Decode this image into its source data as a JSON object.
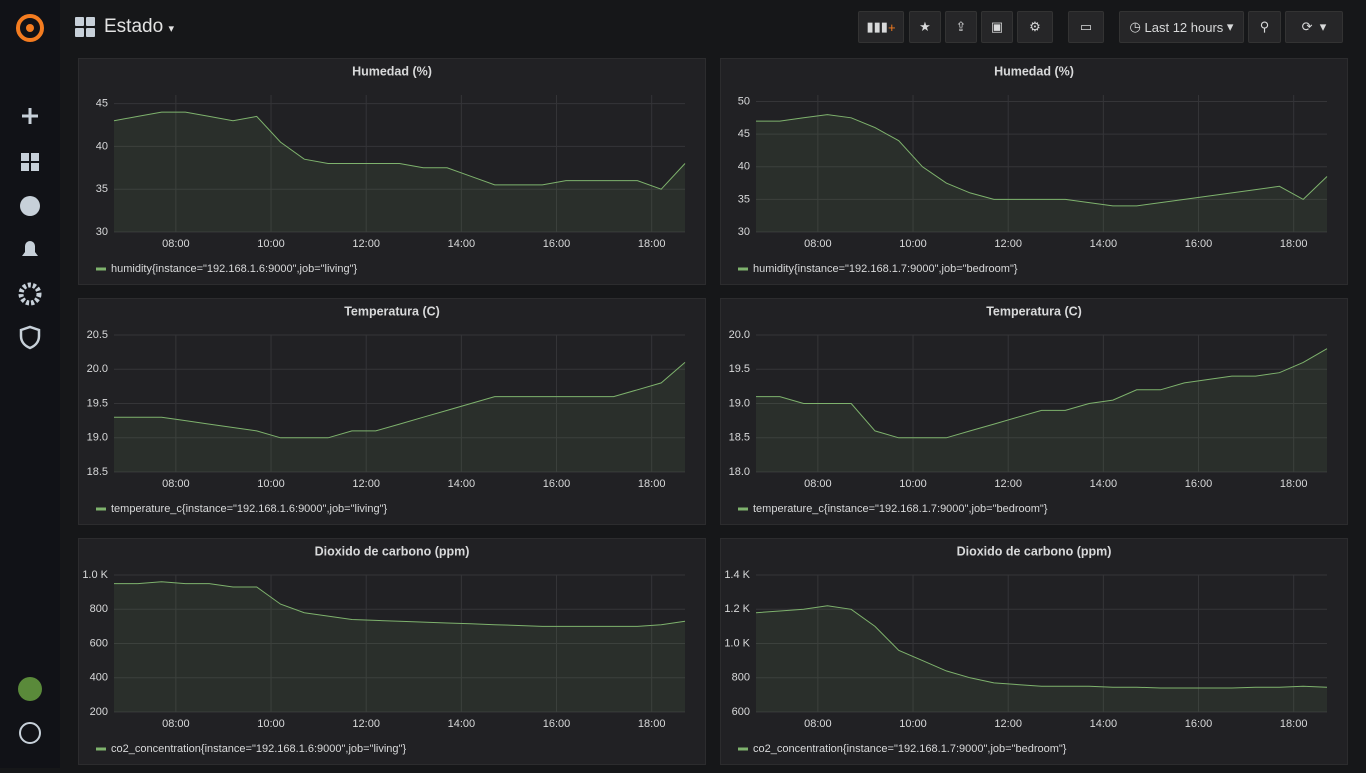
{
  "header": {
    "title": "Estado",
    "time_range": "Last 12 hours"
  },
  "chart_data": [
    {
      "type": "line",
      "title": "Humedad (%)",
      "x": [
        6.7,
        7.2,
        7.7,
        8.2,
        8.7,
        9.2,
        9.7,
        10.2,
        10.7,
        11.2,
        11.7,
        12.2,
        12.7,
        13.2,
        13.7,
        14.2,
        14.7,
        15.2,
        15.7,
        16.2,
        16.7,
        17.2,
        17.7,
        18.2,
        18.7
      ],
      "series": [
        {
          "name": "humidity{instance=\"192.168.1.6:9000\",job=\"living\"}",
          "color": "#7eb26d",
          "values": [
            43,
            43.5,
            44,
            44,
            43.5,
            43,
            43.5,
            40.5,
            38.5,
            38,
            38,
            38,
            38,
            37.5,
            37.5,
            36.5,
            35.5,
            35.5,
            35.5,
            36,
            36,
            36,
            36,
            35,
            38
          ]
        }
      ],
      "xlim": [
        6.7,
        18.7
      ],
      "xticks": [
        {
          "value": 8,
          "label": "08:00"
        },
        {
          "value": 10,
          "label": "10:00"
        },
        {
          "value": 12,
          "label": "12:00"
        },
        {
          "value": 14,
          "label": "14:00"
        },
        {
          "value": 16,
          "label": "16:00"
        },
        {
          "value": 18,
          "label": "18:00"
        }
      ],
      "ylim": [
        30,
        46
      ],
      "yticks": [
        30,
        35,
        40,
        45
      ],
      "grid": true
    },
    {
      "type": "line",
      "title": "Humedad (%)",
      "x": [
        6.7,
        7.2,
        7.7,
        8.2,
        8.7,
        9.2,
        9.7,
        10.2,
        10.7,
        11.2,
        11.7,
        12.2,
        12.7,
        13.2,
        13.7,
        14.2,
        14.7,
        15.2,
        15.7,
        16.2,
        16.7,
        17.2,
        17.7,
        18.2,
        18.7
      ],
      "series": [
        {
          "name": "humidity{instance=\"192.168.1.7:9000\",job=\"bedroom\"}",
          "color": "#7eb26d",
          "values": [
            47,
            47,
            47.5,
            48,
            47.5,
            46,
            44,
            40,
            37.5,
            36,
            35,
            35,
            35,
            35,
            34.5,
            34,
            34,
            34.5,
            35,
            35.5,
            36,
            36.5,
            37,
            35,
            38.5
          ]
        }
      ],
      "xlim": [
        6.7,
        18.7
      ],
      "xticks": [
        {
          "value": 8,
          "label": "08:00"
        },
        {
          "value": 10,
          "label": "10:00"
        },
        {
          "value": 12,
          "label": "12:00"
        },
        {
          "value": 14,
          "label": "14:00"
        },
        {
          "value": 16,
          "label": "16:00"
        },
        {
          "value": 18,
          "label": "18:00"
        }
      ],
      "ylim": [
        30,
        51
      ],
      "yticks": [
        30,
        35,
        40,
        45,
        50
      ],
      "grid": true
    },
    {
      "type": "line",
      "title": "Temperatura (C)",
      "x": [
        6.7,
        7.2,
        7.7,
        8.2,
        8.7,
        9.2,
        9.7,
        10.2,
        10.7,
        11.2,
        11.7,
        12.2,
        12.7,
        13.2,
        13.7,
        14.2,
        14.7,
        15.2,
        15.7,
        16.2,
        16.7,
        17.2,
        17.7,
        18.2,
        18.7
      ],
      "series": [
        {
          "name": "temperature_c{instance=\"192.168.1.6:9000\",job=\"living\"}",
          "color": "#7eb26d",
          "values": [
            19.3,
            19.3,
            19.3,
            19.25,
            19.2,
            19.15,
            19.1,
            19.0,
            19.0,
            19.0,
            19.1,
            19.1,
            19.2,
            19.3,
            19.4,
            19.5,
            19.6,
            19.6,
            19.6,
            19.6,
            19.6,
            19.6,
            19.7,
            19.8,
            20.1
          ]
        }
      ],
      "xlim": [
        6.7,
        18.7
      ],
      "xticks": [
        {
          "value": 8,
          "label": "08:00"
        },
        {
          "value": 10,
          "label": "10:00"
        },
        {
          "value": 12,
          "label": "12:00"
        },
        {
          "value": 14,
          "label": "14:00"
        },
        {
          "value": 16,
          "label": "16:00"
        },
        {
          "value": 18,
          "label": "18:00"
        }
      ],
      "ylim": [
        18.5,
        20.5
      ],
      "yticks": [
        {
          "value": 18.5,
          "label": "18.5"
        },
        {
          "value": 19,
          "label": "19.0"
        },
        {
          "value": 19.5,
          "label": "19.5"
        },
        {
          "value": 20,
          "label": "20.0"
        },
        {
          "value": 20.5,
          "label": "20.5"
        }
      ],
      "grid": true
    },
    {
      "type": "line",
      "title": "Temperatura (C)",
      "x": [
        6.7,
        7.2,
        7.7,
        8.2,
        8.7,
        9.2,
        9.7,
        10.2,
        10.7,
        11.2,
        11.7,
        12.2,
        12.7,
        13.2,
        13.7,
        14.2,
        14.7,
        15.2,
        15.7,
        16.2,
        16.7,
        17.2,
        17.7,
        18.2,
        18.7
      ],
      "series": [
        {
          "name": "temperature_c{instance=\"192.168.1.7:9000\",job=\"bedroom\"}",
          "color": "#7eb26d",
          "values": [
            19.1,
            19.1,
            19.0,
            19.0,
            19.0,
            18.6,
            18.5,
            18.5,
            18.5,
            18.6,
            18.7,
            18.8,
            18.9,
            18.9,
            19.0,
            19.05,
            19.2,
            19.2,
            19.3,
            19.35,
            19.4,
            19.4,
            19.45,
            19.6,
            19.8
          ]
        }
      ],
      "xlim": [
        6.7,
        18.7
      ],
      "xticks": [
        {
          "value": 8,
          "label": "08:00"
        },
        {
          "value": 10,
          "label": "10:00"
        },
        {
          "value": 12,
          "label": "12:00"
        },
        {
          "value": 14,
          "label": "14:00"
        },
        {
          "value": 16,
          "label": "16:00"
        },
        {
          "value": 18,
          "label": "18:00"
        }
      ],
      "ylim": [
        18,
        20
      ],
      "yticks": [
        {
          "value": 18,
          "label": "18.0"
        },
        {
          "value": 18.5,
          "label": "18.5"
        },
        {
          "value": 19,
          "label": "19.0"
        },
        {
          "value": 19.5,
          "label": "19.5"
        },
        {
          "value": 20,
          "label": "20.0"
        }
      ],
      "grid": true
    },
    {
      "type": "line",
      "title": "Dioxido de carbono (ppm)",
      "x": [
        6.7,
        7.2,
        7.7,
        8.2,
        8.7,
        9.2,
        9.7,
        10.2,
        10.7,
        11.2,
        11.7,
        12.2,
        12.7,
        13.2,
        13.7,
        14.2,
        14.7,
        15.2,
        15.7,
        16.2,
        16.7,
        17.2,
        17.7,
        18.2,
        18.7
      ],
      "series": [
        {
          "name": "co2_concentration{instance=\"192.168.1.6:9000\",job=\"living\"}",
          "color": "#7eb26d",
          "values": [
            950,
            950,
            960,
            950,
            950,
            930,
            930,
            830,
            780,
            760,
            740,
            735,
            730,
            725,
            720,
            715,
            710,
            705,
            700,
            700,
            700,
            700,
            700,
            710,
            730
          ]
        }
      ],
      "xlim": [
        6.7,
        18.7
      ],
      "xticks": [
        {
          "value": 8,
          "label": "08:00"
        },
        {
          "value": 10,
          "label": "10:00"
        },
        {
          "value": 12,
          "label": "12:00"
        },
        {
          "value": 14,
          "label": "14:00"
        },
        {
          "value": 16,
          "label": "16:00"
        },
        {
          "value": 18,
          "label": "18:00"
        }
      ],
      "ylim": [
        200,
        1000
      ],
      "yticks": [
        200,
        400,
        600,
        800,
        {
          "value": 1000,
          "label": "1.0 K"
        }
      ],
      "grid": true
    },
    {
      "type": "line",
      "title": "Dioxido de carbono (ppm)",
      "x": [
        6.7,
        7.2,
        7.7,
        8.2,
        8.7,
        9.2,
        9.7,
        10.2,
        10.7,
        11.2,
        11.7,
        12.2,
        12.7,
        13.2,
        13.7,
        14.2,
        14.7,
        15.2,
        15.7,
        16.2,
        16.7,
        17.2,
        17.7,
        18.2,
        18.7
      ],
      "series": [
        {
          "name": "co2_concentration{instance=\"192.168.1.7:9000\",job=\"bedroom\"}",
          "color": "#7eb26d",
          "values": [
            1180,
            1190,
            1200,
            1220,
            1200,
            1100,
            960,
            900,
            840,
            800,
            770,
            760,
            750,
            750,
            750,
            745,
            745,
            740,
            740,
            740,
            740,
            745,
            745,
            750,
            745
          ]
        }
      ],
      "xlim": [
        6.7,
        18.7
      ],
      "xticks": [
        {
          "value": 8,
          "label": "08:00"
        },
        {
          "value": 10,
          "label": "10:00"
        },
        {
          "value": 12,
          "label": "12:00"
        },
        {
          "value": 14,
          "label": "14:00"
        },
        {
          "value": 16,
          "label": "16:00"
        },
        {
          "value": 18,
          "label": "18:00"
        }
      ],
      "ylim": [
        600,
        1400
      ],
      "yticks": [
        600,
        800,
        {
          "value": 1000,
          "label": "1.0 K"
        },
        {
          "value": 1200,
          "label": "1.2 K"
        },
        {
          "value": 1400,
          "label": "1.4 K"
        }
      ],
      "grid": true
    }
  ]
}
